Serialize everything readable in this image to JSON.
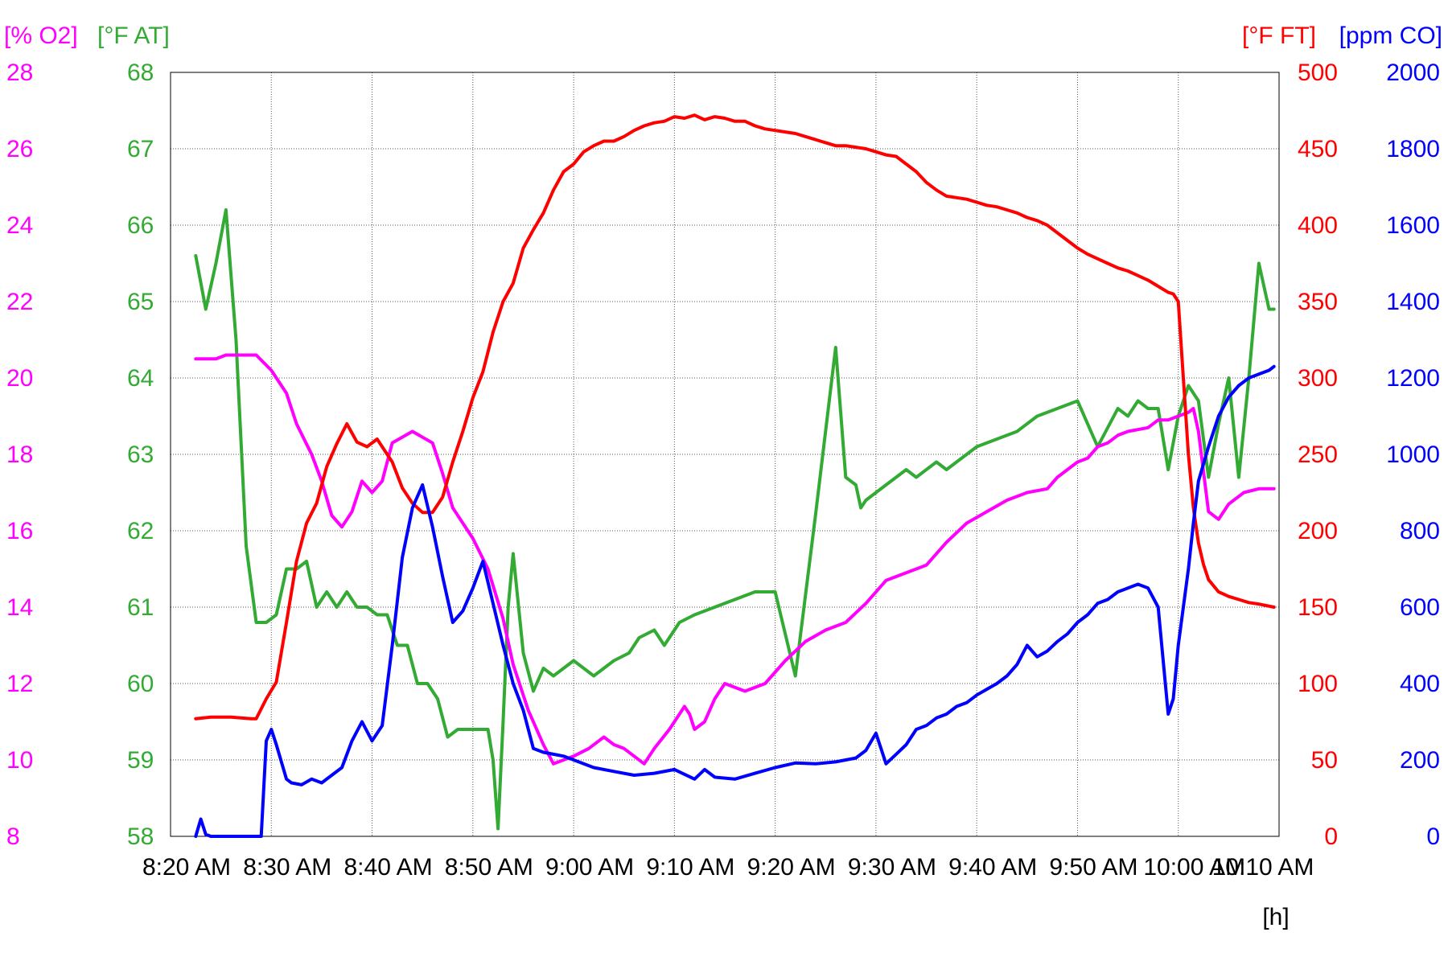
{
  "chart_data": {
    "type": "line",
    "x_axis": {
      "tick_labels": [
        "8:20 AM",
        "8:30 AM",
        "8:40 AM",
        "8:50 AM",
        "9:00 AM",
        "9:10 AM",
        "9:20 AM",
        "9:30 AM",
        "9:40 AM",
        "9:50 AM",
        "10:00 AM",
        "10:10 AM"
      ],
      "tick_minutes": [
        0,
        10,
        20,
        30,
        40,
        50,
        60,
        70,
        80,
        90,
        100,
        110
      ],
      "range_minutes": [
        0,
        110
      ],
      "unit_label": "[h]"
    },
    "y_axes": [
      {
        "id": "o2",
        "unit_label": "[% O2]",
        "color": "#ff00ff",
        "side": "left",
        "range": [
          8,
          28
        ],
        "ticks": [
          8,
          10,
          12,
          14,
          16,
          18,
          20,
          22,
          24,
          26,
          28
        ]
      },
      {
        "id": "at",
        "unit_label": "[°F AT]",
        "color": "#33aa33",
        "side": "left",
        "range": [
          58,
          68
        ],
        "ticks": [
          58,
          59,
          60,
          61,
          62,
          63,
          64,
          65,
          66,
          67,
          68
        ]
      },
      {
        "id": "ft",
        "unit_label": "[°F FT]",
        "color": "#ff0000",
        "side": "right",
        "range": [
          0,
          500
        ],
        "ticks": [
          0,
          50,
          100,
          150,
          200,
          250,
          300,
          350,
          400,
          450,
          500
        ]
      },
      {
        "id": "co",
        "unit_label": "[ppm CO]",
        "color": "#0000ff",
        "side": "right",
        "range": [
          0,
          2000
        ],
        "ticks": [
          0,
          200,
          400,
          600,
          800,
          1000,
          1200,
          1400,
          1600,
          1800,
          2000
        ]
      }
    ],
    "grid": true,
    "series": [
      {
        "axis": "at",
        "color": "#33aa33",
        "x": [
          2.5,
          3.5,
          4.5,
          5.5,
          6.5,
          7.5,
          8.5,
          9.5,
          10.5,
          11.5,
          12.5,
          13.5,
          14.5,
          15.5,
          16.5,
          17.5,
          18.5,
          19.5,
          20.5,
          21.5,
          22.5,
          23.5,
          24.5,
          25.5,
          26.5,
          27.5,
          28.5,
          29.5,
          30.5,
          31.5,
          32.0,
          32.5,
          33.0,
          33.5,
          34.0,
          35.0,
          36.0,
          37.0,
          38.0,
          39.0,
          40.0,
          42.0,
          44.0,
          45.5,
          46.5,
          48.0,
          49.0,
          50.5,
          52.0,
          54.0,
          56.0,
          58.0,
          60.0,
          62.0,
          64.0,
          66.0,
          67.0,
          68.0,
          68.5,
          69.0,
          70.0,
          71.0,
          72.0,
          73.0,
          74.0,
          75.0,
          76.0,
          77.0,
          78.0,
          79.0,
          80.0,
          82.0,
          84.0,
          86.0,
          88.0,
          90.0,
          92.0,
          94.0,
          95.0,
          96.0,
          97.0,
          98.0,
          99.0,
          100.0,
          101.0,
          102.0,
          103.0,
          104.0,
          105.0,
          106.0,
          107.0,
          108.0,
          109.0,
          109.5
        ],
        "values": [
          65.6,
          64.9,
          65.5,
          66.2,
          64.5,
          61.8,
          60.8,
          60.8,
          60.9,
          61.5,
          61.5,
          61.6,
          61.0,
          61.2,
          61.0,
          61.2,
          61.0,
          61.0,
          60.9,
          60.9,
          60.5,
          60.5,
          60.0,
          60.0,
          59.8,
          59.3,
          59.4,
          59.4,
          59.4,
          59.4,
          59.0,
          58.1,
          59.5,
          61.0,
          61.7,
          60.4,
          59.9,
          60.2,
          60.1,
          60.2,
          60.3,
          60.1,
          60.3,
          60.4,
          60.6,
          60.7,
          60.5,
          60.8,
          60.9,
          61.0,
          61.1,
          61.2,
          61.2,
          60.1,
          62.2,
          64.4,
          62.7,
          62.6,
          62.3,
          62.4,
          62.5,
          62.6,
          62.7,
          62.8,
          62.7,
          62.8,
          62.9,
          62.8,
          62.9,
          63.0,
          63.1,
          63.2,
          63.3,
          63.5,
          63.6,
          63.7,
          63.1,
          63.6,
          63.5,
          63.7,
          63.6,
          63.6,
          62.8,
          63.5,
          63.9,
          63.7,
          62.7,
          63.4,
          64.0,
          62.7,
          64.0,
          65.5,
          64.9,
          64.9
        ]
      },
      {
        "axis": "o2",
        "color": "#ff00ff",
        "x": [
          2.5,
          4.5,
          5.5,
          6.5,
          8.5,
          10.0,
          11.5,
          12.5,
          14.0,
          15.0,
          16.0,
          17.0,
          18.0,
          19.0,
          20.0,
          21.0,
          22.0,
          24.0,
          26.0,
          27.0,
          28.0,
          30.0,
          31.5,
          33.0,
          34.0,
          35.5,
          37.0,
          38.0,
          39.0,
          40.0,
          41.5,
          43.0,
          44.0,
          45.0,
          47.0,
          48.0,
          49.5,
          51.0,
          51.5,
          52.0,
          53.0,
          54.0,
          55.0,
          56.0,
          57.0,
          59.0,
          61.0,
          63.0,
          65.0,
          67.0,
          69.0,
          71.0,
          73.0,
          75.0,
          77.0,
          79.0,
          81.0,
          83.0,
          85.0,
          87.0,
          88.0,
          89.0,
          90.0,
          91.0,
          92.0,
          93.0,
          94.0,
          95.0,
          97.0,
          98.0,
          99.0,
          100.0,
          101.0,
          101.5,
          102.0,
          103.0,
          104.0,
          105.0,
          106.5,
          108.0,
          109.5
        ],
        "values": [
          20.5,
          20.5,
          20.6,
          20.6,
          20.6,
          20.2,
          19.6,
          18.8,
          18.0,
          17.3,
          16.4,
          16.1,
          16.5,
          17.3,
          17.0,
          17.3,
          18.3,
          18.6,
          18.3,
          17.5,
          16.6,
          15.8,
          15.0,
          13.7,
          12.5,
          11.3,
          10.4,
          9.9,
          10.0,
          10.1,
          10.3,
          10.6,
          10.4,
          10.3,
          9.9,
          10.3,
          10.8,
          11.4,
          11.2,
          10.8,
          11.0,
          11.6,
          12.0,
          11.9,
          11.8,
          12.0,
          12.6,
          13.1,
          13.4,
          13.6,
          14.1,
          14.7,
          14.9,
          15.1,
          15.7,
          16.2,
          16.5,
          16.8,
          17.0,
          17.1,
          17.4,
          17.6,
          17.8,
          17.9,
          18.2,
          18.3,
          18.5,
          18.6,
          18.7,
          18.9,
          18.9,
          19.0,
          19.1,
          19.2,
          18.6,
          16.5,
          16.3,
          16.7,
          17.0,
          17.1,
          17.1
        ]
      },
      {
        "axis": "ft",
        "color": "#ff0000",
        "x": [
          2.5,
          4.0,
          6.0,
          8.0,
          8.5,
          9.5,
          10.5,
          11.5,
          12.5,
          13.5,
          14.5,
          15.5,
          16.5,
          17.5,
          18.5,
          19.5,
          20.5,
          22.0,
          23.0,
          24.0,
          25.0,
          26.0,
          27.0,
          28.0,
          29.0,
          30.0,
          31.0,
          32.0,
          33.0,
          34.0,
          35.0,
          36.0,
          37.0,
          38.0,
          39.0,
          40.0,
          41.0,
          42.0,
          43.0,
          44.0,
          45.0,
          46.0,
          47.0,
          48.0,
          49.0,
          50.0,
          51.0,
          52.0,
          53.0,
          54.0,
          55.0,
          56.0,
          57.0,
          58.0,
          59.0,
          60.0,
          61.0,
          62.0,
          63.0,
          64.0,
          65.0,
          66.0,
          67.0,
          68.0,
          69.0,
          70.0,
          71.0,
          72.0,
          73.0,
          74.0,
          75.0,
          76.0,
          77.0,
          78.0,
          79.0,
          80.0,
          81.0,
          82.0,
          83.0,
          84.0,
          85.0,
          86.0,
          87.0,
          88.0,
          89.0,
          90.0,
          91.0,
          92.0,
          93.0,
          94.0,
          95.0,
          96.0,
          97.0,
          98.0,
          99.0,
          99.5,
          100.0,
          100.5,
          101.0,
          101.5,
          102.0,
          102.5,
          103.0,
          104.0,
          105.0,
          106.0,
          107.0,
          108.0,
          109.5
        ],
        "values": [
          77,
          78,
          78,
          77,
          77,
          90,
          101,
          140,
          180,
          205,
          218,
          242,
          257,
          270,
          258,
          255,
          260,
          245,
          228,
          218,
          212,
          212,
          222,
          245,
          265,
          287,
          304,
          330,
          350,
          362,
          385,
          397,
          408,
          423,
          435,
          440,
          448,
          452,
          455,
          455,
          458,
          462,
          465,
          467,
          468,
          471,
          470,
          472,
          469,
          471,
          470,
          468,
          468,
          465,
          463,
          462,
          461,
          460,
          458,
          456,
          454,
          452,
          452,
          451,
          450,
          448,
          446,
          445,
          440,
          435,
          428,
          423,
          419,
          418,
          417,
          415,
          413,
          412,
          410,
          408,
          405,
          403,
          400,
          395,
          390,
          385,
          381,
          378,
          375,
          372,
          370,
          367,
          364,
          360,
          356,
          355,
          350,
          300,
          250,
          215,
          192,
          178,
          168,
          160,
          157,
          155,
          153,
          152,
          150
        ]
      },
      {
        "axis": "co",
        "color": "#0000ff",
        "x": [
          2.5,
          3.0,
          3.5,
          4.0,
          6.0,
          8.0,
          9.0,
          9.5,
          10.0,
          10.5,
          11.5,
          12.0,
          13.0,
          14.0,
          15.0,
          16.0,
          17.0,
          18.0,
          19.0,
          20.0,
          21.0,
          22.0,
          23.0,
          24.0,
          25.0,
          26.0,
          27.0,
          28.0,
          29.0,
          30.0,
          31.0,
          32.0,
          33.0,
          34.0,
          35.0,
          36.0,
          37.0,
          38.0,
          39.0,
          40.0,
          42.0,
          44.0,
          46.0,
          48.0,
          50.0,
          52.0,
          53.0,
          54.0,
          56.0,
          58.0,
          60.0,
          62.0,
          64.0,
          66.0,
          68.0,
          69.0,
          70.0,
          71.0,
          72.0,
          73.0,
          74.0,
          75.0,
          76.0,
          77.0,
          78.0,
          79.0,
          80.0,
          81.0,
          82.0,
          83.0,
          84.0,
          85.0,
          86.0,
          87.0,
          88.0,
          89.0,
          90.0,
          91.0,
          92.0,
          93.0,
          94.0,
          95.0,
          96.0,
          97.0,
          98.0,
          99.0,
          99.5,
          100.0,
          101.0,
          101.5,
          102.0,
          103.0,
          104.0,
          105.0,
          106.0,
          107.0,
          108.0,
          109.0,
          109.5
        ],
        "values": [
          0,
          45,
          5,
          0,
          0,
          0,
          0,
          250,
          280,
          240,
          150,
          140,
          135,
          150,
          140,
          160,
          180,
          250,
          300,
          250,
          290,
          500,
          730,
          860,
          920,
          810,
          680,
          560,
          590,
          650,
          720,
          610,
          500,
          400,
          330,
          230,
          220,
          215,
          210,
          200,
          180,
          170,
          160,
          165,
          175,
          150,
          175,
          155,
          150,
          165,
          180,
          192,
          190,
          195,
          205,
          225,
          270,
          190,
          215,
          240,
          280,
          290,
          310,
          320,
          340,
          350,
          370,
          385,
          400,
          420,
          450,
          500,
          470,
          485,
          510,
          530,
          560,
          580,
          610,
          620,
          640,
          650,
          660,
          650,
          600,
          320,
          360,
          500,
          700,
          820,
          930,
          1020,
          1100,
          1150,
          1180,
          1200,
          1210,
          1220,
          1230
        ]
      }
    ]
  }
}
